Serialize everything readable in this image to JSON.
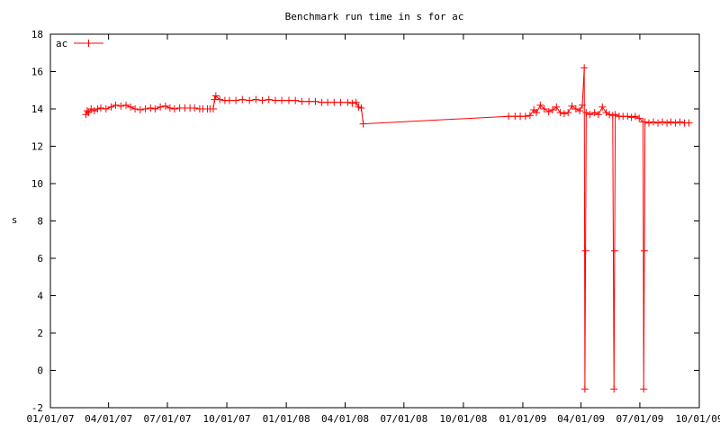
{
  "chart_data": {
    "type": "line",
    "title": "Benchmark run time in s for ac",
    "xlabel": "",
    "ylabel": "s",
    "xlim": [
      "2007-01-01",
      "2009-10-01"
    ],
    "ylim": [
      -2,
      18
    ],
    "yticks": [
      -2,
      0,
      2,
      4,
      6,
      8,
      10,
      12,
      14,
      16,
      18
    ],
    "xticks": [
      {
        "date": "2007-01-01",
        "label": "01/01/07"
      },
      {
        "date": "2007-04-01",
        "label": "04/01/07"
      },
      {
        "date": "2007-07-01",
        "label": "07/01/07"
      },
      {
        "date": "2007-10-01",
        "label": "10/01/07"
      },
      {
        "date": "2008-01-01",
        "label": "01/01/08"
      },
      {
        "date": "2008-04-01",
        "label": "04/01/08"
      },
      {
        "date": "2008-07-01",
        "label": "07/01/08"
      },
      {
        "date": "2008-10-01",
        "label": "10/01/08"
      },
      {
        "date": "2009-01-01",
        "label": "01/01/09"
      },
      {
        "date": "2009-04-01",
        "label": "04/01/09"
      },
      {
        "date": "2009-07-01",
        "label": "07/01/09"
      },
      {
        "date": "2009-10-01",
        "label": "10/01/09"
      }
    ],
    "grid": false,
    "legend_position": "top-left",
    "series": [
      {
        "name": "ac",
        "color": "#ff0000",
        "marker": "plus",
        "points": [
          [
            "2007-02-25",
            13.7
          ],
          [
            "2007-02-27",
            13.9
          ],
          [
            "2007-03-01",
            13.8
          ],
          [
            "2007-03-05",
            14.0
          ],
          [
            "2007-03-10",
            13.9
          ],
          [
            "2007-03-15",
            14.0
          ],
          [
            "2007-03-20",
            14.05
          ],
          [
            "2007-03-28",
            14.0
          ],
          [
            "2007-04-05",
            14.1
          ],
          [
            "2007-04-12",
            14.2
          ],
          [
            "2007-04-20",
            14.15
          ],
          [
            "2007-04-28",
            14.2
          ],
          [
            "2007-05-05",
            14.1
          ],
          [
            "2007-05-12",
            14.0
          ],
          [
            "2007-05-20",
            13.95
          ],
          [
            "2007-05-28",
            14.0
          ],
          [
            "2007-06-05",
            14.05
          ],
          [
            "2007-06-12",
            14.0
          ],
          [
            "2007-06-20",
            14.1
          ],
          [
            "2007-06-28",
            14.15
          ],
          [
            "2007-07-05",
            14.05
          ],
          [
            "2007-07-12",
            14.0
          ],
          [
            "2007-07-20",
            14.05
          ],
          [
            "2007-07-28",
            14.05
          ],
          [
            "2007-08-05",
            14.05
          ],
          [
            "2007-08-12",
            14.05
          ],
          [
            "2007-08-20",
            14.0
          ],
          [
            "2007-08-25",
            14.0
          ],
          [
            "2007-09-01",
            14.0
          ],
          [
            "2007-09-05",
            14.0
          ],
          [
            "2007-09-10",
            14.0
          ],
          [
            "2007-09-12",
            14.5
          ],
          [
            "2007-09-14",
            14.7
          ],
          [
            "2007-09-20",
            14.5
          ],
          [
            "2007-09-28",
            14.45
          ],
          [
            "2007-10-05",
            14.45
          ],
          [
            "2007-10-15",
            14.45
          ],
          [
            "2007-10-25",
            14.5
          ],
          [
            "2007-11-05",
            14.45
          ],
          [
            "2007-11-15",
            14.5
          ],
          [
            "2007-11-25",
            14.45
          ],
          [
            "2007-12-05",
            14.5
          ],
          [
            "2007-12-15",
            14.45
          ],
          [
            "2007-12-25",
            14.45
          ],
          [
            "2008-01-05",
            14.45
          ],
          [
            "2008-01-15",
            14.45
          ],
          [
            "2008-01-25",
            14.4
          ],
          [
            "2008-02-05",
            14.4
          ],
          [
            "2008-02-15",
            14.4
          ],
          [
            "2008-02-25",
            14.35
          ],
          [
            "2008-03-05",
            14.35
          ],
          [
            "2008-03-15",
            14.35
          ],
          [
            "2008-03-25",
            14.35
          ],
          [
            "2008-04-05",
            14.35
          ],
          [
            "2008-04-12",
            14.3
          ],
          [
            "2008-04-18",
            14.35
          ],
          [
            "2008-04-22",
            14.1
          ],
          [
            "2008-04-26",
            14.05
          ],
          [
            "2008-04-29",
            13.2
          ],
          [
            "2008-12-10",
            13.6
          ],
          [
            "2008-12-20",
            13.6
          ],
          [
            "2008-12-28",
            13.6
          ],
          [
            "2009-01-05",
            13.6
          ],
          [
            "2009-01-12",
            13.65
          ],
          [
            "2009-01-18",
            13.95
          ],
          [
            "2009-01-22",
            13.8
          ],
          [
            "2009-01-28",
            14.2
          ],
          [
            "2009-02-03",
            14.0
          ],
          [
            "2009-02-10",
            13.85
          ],
          [
            "2009-02-16",
            13.95
          ],
          [
            "2009-02-22",
            14.1
          ],
          [
            "2009-02-28",
            13.8
          ],
          [
            "2009-03-06",
            13.75
          ],
          [
            "2009-03-12",
            13.8
          ],
          [
            "2009-03-18",
            14.15
          ],
          [
            "2009-03-24",
            14.0
          ],
          [
            "2009-03-30",
            13.9
          ],
          [
            "2009-04-03",
            14.2
          ],
          [
            "2009-04-06",
            16.2
          ],
          [
            "2009-04-07",
            -1.0
          ],
          [
            "2009-04-08",
            6.4
          ],
          [
            "2009-04-09",
            13.8
          ],
          [
            "2009-04-15",
            13.7
          ],
          [
            "2009-04-22",
            13.8
          ],
          [
            "2009-04-28",
            13.7
          ],
          [
            "2009-05-04",
            14.1
          ],
          [
            "2009-05-10",
            13.8
          ],
          [
            "2009-05-15",
            13.7
          ],
          [
            "2009-05-20",
            13.65
          ],
          [
            "2009-05-22",
            -1.0
          ],
          [
            "2009-05-23",
            6.4
          ],
          [
            "2009-05-24",
            13.7
          ],
          [
            "2009-05-30",
            13.6
          ],
          [
            "2009-06-05",
            13.6
          ],
          [
            "2009-06-12",
            13.6
          ],
          [
            "2009-06-18",
            13.55
          ],
          [
            "2009-06-24",
            13.6
          ],
          [
            "2009-06-30",
            13.5
          ],
          [
            "2009-07-06",
            13.3
          ],
          [
            "2009-07-07",
            -1.0
          ],
          [
            "2009-07-08",
            6.4
          ],
          [
            "2009-07-09",
            13.3
          ],
          [
            "2009-07-15",
            13.25
          ],
          [
            "2009-07-22",
            13.3
          ],
          [
            "2009-07-29",
            13.25
          ],
          [
            "2009-08-05",
            13.3
          ],
          [
            "2009-08-12",
            13.25
          ],
          [
            "2009-08-18",
            13.3
          ],
          [
            "2009-08-25",
            13.25
          ],
          [
            "2009-09-01",
            13.3
          ],
          [
            "2009-09-08",
            13.25
          ],
          [
            "2009-09-15",
            13.25
          ]
        ]
      }
    ]
  }
}
